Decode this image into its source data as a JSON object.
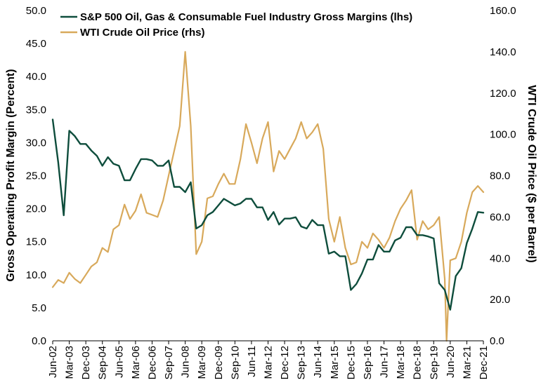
{
  "chart_data": {
    "type": "line",
    "ylabel": "Gross Operating Profit Margin (Percent)",
    "y2label": "WTI Crude Oil Price ($ per Barrel)",
    "ylim": [
      0,
      50
    ],
    "y2lim": [
      0,
      160
    ],
    "yticks": [
      "0.0",
      "5.0",
      "10.0",
      "15.0",
      "20.0",
      "25.0",
      "30.0",
      "35.0",
      "40.0",
      "45.0",
      "50.0"
    ],
    "y2ticks": [
      "0.0",
      "20.0",
      "40.0",
      "60.0",
      "80.0",
      "100.0",
      "120.0",
      "140.0",
      "160.0"
    ],
    "xlim": [
      "2002-06",
      "2021-12"
    ],
    "xticks": [
      "Jun-02",
      "Mar-03",
      "Dec-03",
      "Sep-04",
      "Jun-05",
      "Mar-06",
      "Dec-06",
      "Sep-07",
      "Jun-08",
      "Mar-09",
      "Dec-09",
      "Sep-10",
      "Jun-11",
      "Mar-12",
      "Dec-12",
      "Sep-13",
      "Jun-14",
      "Mar-15",
      "Dec-15",
      "Sep-16",
      "Jun-17",
      "Mar-18",
      "Dec-18",
      "Sep-19",
      "Jun-20",
      "Mar-21",
      "Dec-21"
    ],
    "grid": false,
    "legend_position": "top-left",
    "series": [
      {
        "name": "S&P 500 Oil, Gas & Consumable Fuel Industry Gross Margins (lhs)",
        "axis": "left",
        "color": "#0e4d3c",
        "points": [
          [
            "2002-06",
            33.5
          ],
          [
            "2002-09",
            27.0
          ],
          [
            "2002-12",
            19.0
          ],
          [
            "2003-03",
            31.8
          ],
          [
            "2003-06",
            31.0
          ],
          [
            "2003-09",
            29.8
          ],
          [
            "2003-12",
            29.8
          ],
          [
            "2004-03",
            28.8
          ],
          [
            "2004-06",
            28.0
          ],
          [
            "2004-09",
            26.5
          ],
          [
            "2004-12",
            27.8
          ],
          [
            "2005-03",
            26.8
          ],
          [
            "2005-06",
            26.5
          ],
          [
            "2005-09",
            24.3
          ],
          [
            "2005-12",
            24.3
          ],
          [
            "2006-03",
            26.0
          ],
          [
            "2006-06",
            27.5
          ],
          [
            "2006-09",
            27.5
          ],
          [
            "2006-12",
            27.3
          ],
          [
            "2007-03",
            26.5
          ],
          [
            "2007-06",
            26.5
          ],
          [
            "2007-09",
            27.3
          ],
          [
            "2007-12",
            23.3
          ],
          [
            "2008-03",
            23.3
          ],
          [
            "2008-06",
            22.5
          ],
          [
            "2008-09",
            24.0
          ],
          [
            "2008-12",
            17.0
          ],
          [
            "2009-03",
            17.5
          ],
          [
            "2009-06",
            19.0
          ],
          [
            "2009-09",
            19.5
          ],
          [
            "2009-12",
            20.5
          ],
          [
            "2010-03",
            21.5
          ],
          [
            "2010-06",
            21.0
          ],
          [
            "2010-09",
            20.5
          ],
          [
            "2010-12",
            20.8
          ],
          [
            "2011-03",
            21.5
          ],
          [
            "2011-06",
            21.5
          ],
          [
            "2011-09",
            20.2
          ],
          [
            "2011-12",
            20.2
          ],
          [
            "2012-03",
            18.3
          ],
          [
            "2012-06",
            19.5
          ],
          [
            "2012-09",
            17.6
          ],
          [
            "2012-12",
            18.5
          ],
          [
            "2013-03",
            18.5
          ],
          [
            "2013-06",
            18.7
          ],
          [
            "2013-09",
            17.3
          ],
          [
            "2013-12",
            17.0
          ],
          [
            "2014-03",
            18.3
          ],
          [
            "2014-06",
            17.5
          ],
          [
            "2014-09",
            17.5
          ],
          [
            "2014-12",
            13.2
          ],
          [
            "2015-03",
            13.5
          ],
          [
            "2015-06",
            12.8
          ],
          [
            "2015-09",
            12.8
          ],
          [
            "2015-12",
            7.7
          ],
          [
            "2016-03",
            8.6
          ],
          [
            "2016-06",
            10.2
          ],
          [
            "2016-09",
            12.3
          ],
          [
            "2016-12",
            12.3
          ],
          [
            "2017-03",
            14.5
          ],
          [
            "2017-06",
            13.5
          ],
          [
            "2017-09",
            13.5
          ],
          [
            "2017-12",
            15.2
          ],
          [
            "2018-03",
            15.6
          ],
          [
            "2018-06",
            17.2
          ],
          [
            "2018-09",
            17.2
          ],
          [
            "2018-12",
            16.0
          ],
          [
            "2019-03",
            16.0
          ],
          [
            "2019-06",
            15.8
          ],
          [
            "2019-09",
            15.5
          ],
          [
            "2019-12",
            8.7
          ],
          [
            "2020-03",
            7.7
          ],
          [
            "2020-06",
            4.7
          ],
          [
            "2020-09",
            9.8
          ],
          [
            "2020-12",
            11.0
          ],
          [
            "2021-03",
            14.8
          ],
          [
            "2021-06",
            17.0
          ],
          [
            "2021-09",
            19.5
          ],
          [
            "2021-12",
            19.4
          ]
        ]
      },
      {
        "name": "WTI Crude Oil Price (rhs)",
        "axis": "right",
        "color": "#d8a95b",
        "points": [
          [
            "2002-06",
            26
          ],
          [
            "2002-09",
            29.5
          ],
          [
            "2002-12",
            28
          ],
          [
            "2003-03",
            33
          ],
          [
            "2003-06",
            30
          ],
          [
            "2003-09",
            28
          ],
          [
            "2003-12",
            32
          ],
          [
            "2004-03",
            36
          ],
          [
            "2004-06",
            38
          ],
          [
            "2004-09",
            45
          ],
          [
            "2004-12",
            43
          ],
          [
            "2005-03",
            54
          ],
          [
            "2005-06",
            56
          ],
          [
            "2005-09",
            66
          ],
          [
            "2005-12",
            59
          ],
          [
            "2006-03",
            63
          ],
          [
            "2006-06",
            71
          ],
          [
            "2006-09",
            62
          ],
          [
            "2006-12",
            61
          ],
          [
            "2007-03",
            60
          ],
          [
            "2007-06",
            68
          ],
          [
            "2007-09",
            80
          ],
          [
            "2007-12",
            92
          ],
          [
            "2008-03",
            104
          ],
          [
            "2008-06",
            140
          ],
          [
            "2008-09",
            104
          ],
          [
            "2008-12",
            42
          ],
          [
            "2009-03",
            48
          ],
          [
            "2009-06",
            69
          ],
          [
            "2009-09",
            70
          ],
          [
            "2009-12",
            76
          ],
          [
            "2010-03",
            81
          ],
          [
            "2010-06",
            76
          ],
          [
            "2010-09",
            76
          ],
          [
            "2010-12",
            88
          ],
          [
            "2011-03",
            105
          ],
          [
            "2011-06",
            96
          ],
          [
            "2011-09",
            86
          ],
          [
            "2011-12",
            98
          ],
          [
            "2012-03",
            106
          ],
          [
            "2012-06",
            82
          ],
          [
            "2012-09",
            92
          ],
          [
            "2012-12",
            88
          ],
          [
            "2013-03",
            93
          ],
          [
            "2013-06",
            98
          ],
          [
            "2013-09",
            106
          ],
          [
            "2013-12",
            98
          ],
          [
            "2014-03",
            101
          ],
          [
            "2014-06",
            105
          ],
          [
            "2014-09",
            93
          ],
          [
            "2014-12",
            59
          ],
          [
            "2015-03",
            48
          ],
          [
            "2015-06",
            60
          ],
          [
            "2015-09",
            45
          ],
          [
            "2015-12",
            37
          ],
          [
            "2016-03",
            38
          ],
          [
            "2016-06",
            48
          ],
          [
            "2016-09",
            45
          ],
          [
            "2016-12",
            52
          ],
          [
            "2017-03",
            49
          ],
          [
            "2017-06",
            45
          ],
          [
            "2017-09",
            50
          ],
          [
            "2017-12",
            58
          ],
          [
            "2018-03",
            64
          ],
          [
            "2018-06",
            68
          ],
          [
            "2018-09",
            73
          ],
          [
            "2018-12",
            49
          ],
          [
            "2019-03",
            58
          ],
          [
            "2019-06",
            54
          ],
          [
            "2019-09",
            56
          ],
          [
            "2019-12",
            60
          ],
          [
            "2020-03",
            30
          ],
          [
            "2020-04",
            0
          ],
          [
            "2020-06",
            39
          ],
          [
            "2020-09",
            40
          ],
          [
            "2020-12",
            48
          ],
          [
            "2021-03",
            62
          ],
          [
            "2021-06",
            72
          ],
          [
            "2021-09",
            75
          ],
          [
            "2021-12",
            72
          ]
        ]
      }
    ]
  }
}
